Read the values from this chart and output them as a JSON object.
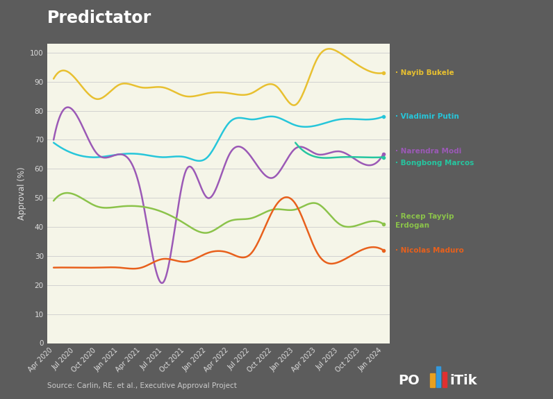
{
  "title": "Predictator",
  "ylabel": "Approval (%)",
  "source": "Source: Carlin, RE. et al., Executive Approval Project",
  "background_outer": "#5c5c5c",
  "background_plot": "#f5f5e8",
  "yticks": [
    0,
    10,
    20,
    30,
    40,
    50,
    60,
    70,
    80,
    90,
    100
  ],
  "xtick_labels": [
    "Apr 2020",
    "Jul 2020",
    "Oct 2020",
    "Jan 2021",
    "Apr 2021",
    "Jul 2021",
    "Oct 2021",
    "Jan 2022",
    "Apr 2022",
    "Jul 2022",
    "Oct 2022",
    "Jan 2023",
    "Apr 2023",
    "Jul 2023",
    "Oct 2023",
    "Jan 2024"
  ],
  "series": {
    "Nayib Bukele": {
      "color": "#e8c030",
      "data_x": [
        0,
        1,
        2,
        3,
        4,
        5,
        6,
        7,
        8,
        9,
        10,
        10.2,
        11,
        12,
        13,
        14,
        15
      ],
      "data_y": [
        91,
        91,
        84,
        89,
        88,
        88,
        85,
        86,
        86,
        86,
        89,
        88,
        82,
        98,
        100,
        95,
        93
      ]
    },
    "Vladimir Putin": {
      "color": "#26c6da",
      "data_x": [
        0,
        1,
        2,
        3,
        4,
        5,
        6,
        7,
        8,
        9,
        10,
        11,
        12,
        13,
        14,
        15
      ],
      "data_y": [
        69,
        65,
        64,
        65,
        65,
        64,
        64,
        64,
        76,
        77,
        78,
        75,
        75,
        77,
        77,
        78
      ]
    },
    "Narendra Modi": {
      "color": "#9b59b6",
      "data_x": [
        0,
        1,
        2,
        3,
        4,
        5,
        6,
        7,
        8,
        9,
        10,
        11,
        12,
        13,
        14,
        15
      ],
      "data_y": [
        70,
        79,
        65,
        65,
        51,
        21,
        59,
        50,
        65,
        64,
        57,
        67,
        65,
        66,
        62,
        65
      ]
    },
    "Bongbong Marcos": {
      "color": "#26c6a0",
      "data_x": [
        11,
        12,
        13,
        14,
        15
      ],
      "data_y": [
        69,
        64,
        64,
        64,
        64
      ]
    },
    "Recep Tayyip Erdogan": {
      "color": "#8bc34a",
      "data_x": [
        0,
        1,
        2,
        3,
        4,
        5,
        6,
        7,
        8,
        9,
        10,
        11,
        12,
        13,
        14,
        15
      ],
      "data_y": [
        49,
        51,
        47,
        47,
        47,
        45,
        41,
        38,
        42,
        43,
        46,
        46,
        48,
        41,
        41,
        41
      ]
    },
    "Nicolas Maduro": {
      "color": "#e8601c",
      "data_x": [
        0,
        1,
        2,
        3,
        4,
        5,
        6,
        7,
        8,
        9,
        10,
        11,
        12,
        13,
        14,
        15
      ],
      "data_y": [
        26,
        26,
        26,
        26,
        26,
        29,
        28,
        31,
        31,
        31,
        46,
        48,
        31,
        28,
        32,
        32
      ]
    }
  },
  "label_positions": {
    "Nayib Bukele": {
      "y": 93,
      "label": "Nayib Bukele"
    },
    "Vladimir Putin": {
      "y": 78,
      "label": "Vladimir Putin"
    },
    "Narendra Modi": {
      "y": 66,
      "label": "Narendra Modi"
    },
    "Bongbong Marcos": {
      "y": 62,
      "label": "Bongbong Marcos"
    },
    "Recep Tayyip Erdogan": {
      "y": 42,
      "label": "Recep Tayyip\nErdogan"
    },
    "Nicolas Maduro": {
      "y": 32,
      "label": "Nicolas Maduro"
    }
  }
}
